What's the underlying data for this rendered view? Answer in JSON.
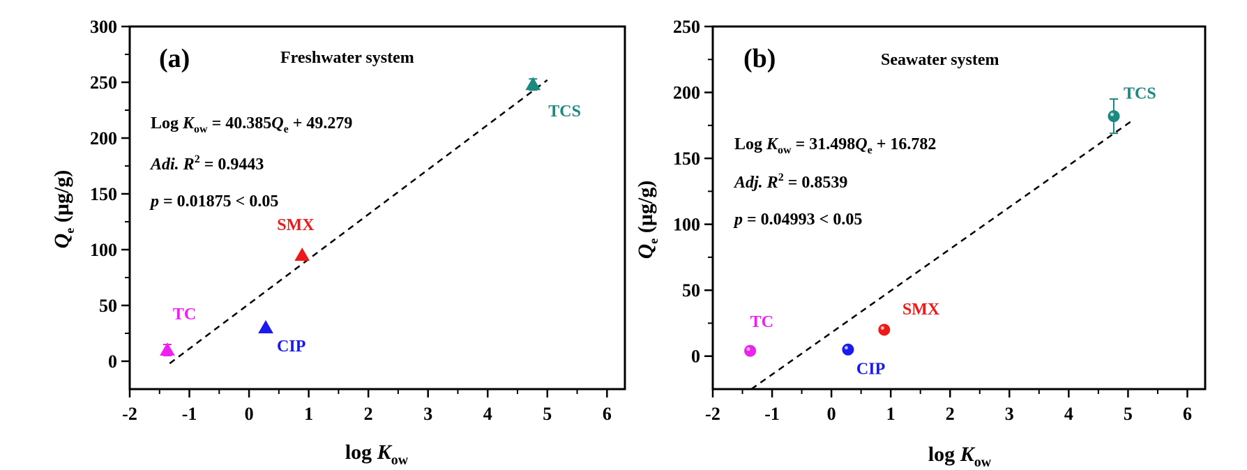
{
  "chart_data": [
    {
      "type": "scatter",
      "panel_label": "(a)",
      "title": "Freshwater system",
      "xlabel": {
        "prefix": "log ",
        "var": "K",
        "sub": "ow"
      },
      "ylabel": {
        "var": "Q",
        "sub": "e",
        "unit": " (µg/g)"
      },
      "xlim": [
        -2,
        6.3
      ],
      "ylim": [
        -25,
        300
      ],
      "xticks": [
        -2,
        -1,
        0,
        1,
        2,
        3,
        4,
        5,
        6
      ],
      "yticks": [
        0,
        50,
        100,
        150,
        200,
        250,
        300
      ],
      "xtick_labels": [
        "-2",
        "-1",
        "0",
        "1",
        "2",
        "3",
        "4",
        "5",
        "6"
      ],
      "ytick_labels": [
        "0",
        "50",
        "100",
        "150",
        "200",
        "250",
        "300"
      ],
      "marker": "triangle",
      "points": [
        {
          "name": "TC",
          "x": -1.37,
          "y": 10,
          "err": 5,
          "color": "#ee22ee"
        },
        {
          "name": "CIP",
          "x": 0.28,
          "y": 30,
          "err": 0,
          "color": "#1a1aee"
        },
        {
          "name": "SMX",
          "x": 0.89,
          "y": 95,
          "err": 0,
          "color": "#ee1a1a"
        },
        {
          "name": "TCS",
          "x": 4.76,
          "y": 248,
          "err": 5,
          "color": "#1a8a80"
        }
      ],
      "fit_line": {
        "x": [
          -1.33,
          5.0
        ],
        "y": [
          -2,
          252
        ]
      },
      "equation": {
        "line1": {
          "prefix": "Log ",
          "var1": "K",
          "sub1": "ow",
          "mid": " = 40.385",
          "var2": "Q",
          "sub2": "e",
          "suffix": " + 49.279"
        },
        "line2": {
          "var": "Adi. R",
          "sup": "2",
          "suffix": " = 0.9443"
        },
        "line3": {
          "var": "p",
          "suffix": " = 0.01875 < 0.05"
        }
      }
    },
    {
      "type": "scatter",
      "panel_label": "(b)",
      "title": "Seawater system",
      "xlabel": {
        "prefix": "log ",
        "var": "K",
        "sub": "ow"
      },
      "ylabel": {
        "var": "Q",
        "sub": "e",
        "unit": " (µg/g)"
      },
      "xlim": [
        -2,
        6.3
      ],
      "ylim": [
        -25,
        250
      ],
      "xticks": [
        -2,
        -1,
        0,
        1,
        2,
        3,
        4,
        5,
        6
      ],
      "yticks": [
        0,
        50,
        100,
        150,
        200,
        250
      ],
      "xtick_labels": [
        "-2",
        "-1",
        "0",
        "1",
        "2",
        "3",
        "4",
        "5",
        "6"
      ],
      "ytick_labels": [
        "0",
        "50",
        "100",
        "150",
        "200",
        "250"
      ],
      "marker": "circle",
      "points": [
        {
          "name": "TC",
          "x": -1.37,
          "y": 4,
          "err": 0,
          "color": "#ee22ee"
        },
        {
          "name": "CIP",
          "x": 0.28,
          "y": 5,
          "err": 0,
          "color": "#1a1aee"
        },
        {
          "name": "SMX",
          "x": 0.89,
          "y": 20,
          "err": 0,
          "color": "#ee1a1a"
        },
        {
          "name": "TCS",
          "x": 4.76,
          "y": 182,
          "err": 13,
          "color": "#1a8a80"
        }
      ],
      "fit_line": {
        "x": [
          -1.35,
          5.05
        ],
        "y": [
          -25,
          178
        ]
      },
      "equation": {
        "line1": {
          "prefix": "Log ",
          "var1": "K",
          "sub1": "ow",
          "mid": " = 31.498",
          "var2": "Q",
          "sub2": "e",
          "suffix": " + 16.782"
        },
        "line2": {
          "var": "Adj. R",
          "sup": "2",
          "suffix": " = 0.8539"
        },
        "line3": {
          "var": "p",
          "suffix": " = 0.04993 < 0.05"
        }
      }
    }
  ]
}
